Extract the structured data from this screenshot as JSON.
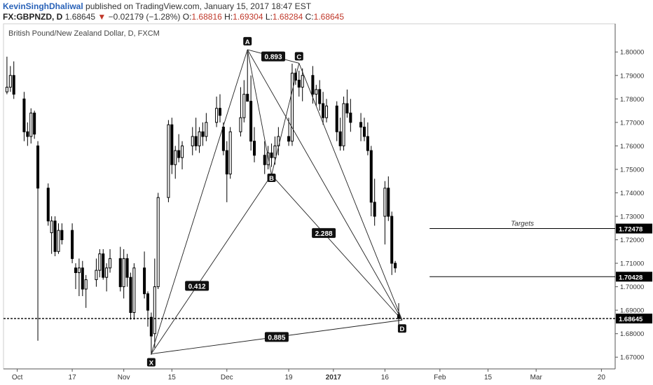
{
  "header": {
    "author": "KevinSinghDhaliwal",
    "published_text": "published on TradingView.com, January 15, 2017 18:47 EST",
    "symbol": "FX:GBPNZD, D",
    "last": "1.68645",
    "change_icon": "down-triangle-icon",
    "change": "−0.02179 (−1.28%)",
    "o_label": "O:",
    "o": "1.68816",
    "h_label": "H:",
    "h": "1.69304",
    "l_label": "L:",
    "l": "1.68284",
    "c_label": "C:",
    "c": "1.68645"
  },
  "colors": {
    "bull": "#ffffff",
    "bear": "#000000",
    "accent_red": "#c0392b",
    "link_blue": "#2962b8"
  },
  "chart_data": {
    "type": "candlestick",
    "title": "British Pound/New Zealand Dollar, D, FXCM",
    "y_ticks": [
      1.67,
      1.68,
      1.69,
      1.7,
      1.71,
      1.72,
      1.73,
      1.74,
      1.75,
      1.76,
      1.77,
      1.78,
      1.79,
      1.8
    ],
    "y_tick_labels": [
      "1.67000",
      "1.68000",
      "1.69000",
      "1.70000",
      "1.71000",
      "1.72000",
      "1.73000",
      "1.74000",
      "1.75000",
      "1.76000",
      "1.77000",
      "1.78000",
      "1.79000",
      "1.80000"
    ],
    "ylim": [
      1.665,
      1.812
    ],
    "x_ticks": [
      {
        "label": "Oct",
        "date": "2016-10-01"
      },
      {
        "label": "17",
        "date": "2016-10-17"
      },
      {
        "label": "Nov",
        "date": "2016-11-01"
      },
      {
        "label": "15",
        "date": "2016-11-15"
      },
      {
        "label": "Dec",
        "date": "2016-12-01"
      },
      {
        "label": "19",
        "date": "2016-12-19"
      },
      {
        "label": "2017",
        "date": "2017-01-01"
      },
      {
        "label": "16",
        "date": "2017-01-16"
      },
      {
        "label": "Feb",
        "date": "2017-02-01"
      },
      {
        "label": "15",
        "date": "2017-02-15"
      },
      {
        "label": "Mar",
        "date": "2017-03-01"
      },
      {
        "label": "20",
        "date": "2017-03-20"
      }
    ],
    "xlim": [
      "2016-09-27",
      "2017-03-24"
    ],
    "grid": false,
    "candles": [
      {
        "date": "2016-09-28",
        "o": 1.783,
        "h": 1.798,
        "l": 1.782,
        "c": 1.785
      },
      {
        "date": "2016-09-29",
        "o": 1.785,
        "h": 1.794,
        "l": 1.783,
        "c": 1.79
      },
      {
        "date": "2016-09-30",
        "o": 1.79,
        "h": 1.796,
        "l": 1.78,
        "c": 1.782
      },
      {
        "date": "2016-10-03",
        "o": 1.78,
        "h": 1.783,
        "l": 1.762,
        "c": 1.766
      },
      {
        "date": "2016-10-04",
        "o": 1.766,
        "h": 1.77,
        "l": 1.76,
        "c": 1.764
      },
      {
        "date": "2016-10-05",
        "o": 1.764,
        "h": 1.776,
        "l": 1.761,
        "c": 1.774
      },
      {
        "date": "2016-10-06",
        "o": 1.774,
        "h": 1.775,
        "l": 1.763,
        "c": 1.765
      },
      {
        "date": "2016-10-07",
        "o": 1.76,
        "h": 1.762,
        "l": 1.677,
        "c": 1.742
      },
      {
        "date": "2016-10-10",
        "o": 1.742,
        "h": 1.744,
        "l": 1.726,
        "c": 1.728
      },
      {
        "date": "2016-10-11",
        "o": 1.723,
        "h": 1.73,
        "l": 1.714,
        "c": 1.728
      },
      {
        "date": "2016-10-12",
        "o": 1.728,
        "h": 1.73,
        "l": 1.713,
        "c": 1.715
      },
      {
        "date": "2016-10-13",
        "o": 1.715,
        "h": 1.727,
        "l": 1.714,
        "c": 1.724
      },
      {
        "date": "2016-10-14",
        "o": 1.724,
        "h": 1.727,
        "l": 1.718,
        "c": 1.72
      },
      {
        "date": "2016-10-17",
        "o": 1.724,
        "h": 1.727,
        "l": 1.71,
        "c": 1.712
      },
      {
        "date": "2016-10-18",
        "o": 1.708,
        "h": 1.71,
        "l": 1.699,
        "c": 1.706
      },
      {
        "date": "2016-10-19",
        "o": 1.706,
        "h": 1.712,
        "l": 1.696,
        "c": 1.708
      },
      {
        "date": "2016-10-20",
        "o": 1.708,
        "h": 1.711,
        "l": 1.696,
        "c": 1.699
      },
      {
        "date": "2016-10-21",
        "o": 1.699,
        "h": 1.705,
        "l": 1.691,
        "c": 1.703
      },
      {
        "date": "2016-10-24",
        "o": 1.703,
        "h": 1.712,
        "l": 1.7,
        "c": 1.707
      },
      {
        "date": "2016-10-25",
        "o": 1.707,
        "h": 1.716,
        "l": 1.704,
        "c": 1.714
      },
      {
        "date": "2016-10-26",
        "o": 1.714,
        "h": 1.716,
        "l": 1.703,
        "c": 1.704
      },
      {
        "date": "2016-10-27",
        "o": 1.704,
        "h": 1.71,
        "l": 1.698,
        "c": 1.708
      },
      {
        "date": "2016-10-28",
        "o": 1.708,
        "h": 1.716,
        "l": 1.706,
        "c": 1.712
      },
      {
        "date": "2016-10-31",
        "o": 1.712,
        "h": 1.717,
        "l": 1.698,
        "c": 1.7
      },
      {
        "date": "2016-11-01",
        "o": 1.7,
        "h": 1.716,
        "l": 1.695,
        "c": 1.712
      },
      {
        "date": "2016-11-02",
        "o": 1.712,
        "h": 1.714,
        "l": 1.7,
        "c": 1.704
      },
      {
        "date": "2016-11-03",
        "o": 1.704,
        "h": 1.706,
        "l": 1.686,
        "c": 1.689
      },
      {
        "date": "2016-11-04",
        "o": 1.689,
        "h": 1.71,
        "l": 1.686,
        "c": 1.708
      },
      {
        "date": "2016-11-07",
        "o": 1.708,
        "h": 1.715,
        "l": 1.695,
        "c": 1.697
      },
      {
        "date": "2016-11-08",
        "o": 1.697,
        "h": 1.698,
        "l": 1.683,
        "c": 1.69
      },
      {
        "date": "2016-11-09",
        "o": 1.687,
        "h": 1.689,
        "l": 1.671,
        "c": 1.679
      },
      {
        "date": "2016-11-10",
        "o": 1.68,
        "h": 1.712,
        "l": 1.674,
        "c": 1.7
      },
      {
        "date": "2016-11-11",
        "o": 1.7,
        "h": 1.74,
        "l": 1.699,
        "c": 1.738
      },
      {
        "date": "2016-11-14",
        "o": 1.738,
        "h": 1.771,
        "l": 1.736,
        "c": 1.769
      },
      {
        "date": "2016-11-15",
        "o": 1.769,
        "h": 1.772,
        "l": 1.748,
        "c": 1.752
      },
      {
        "date": "2016-11-16",
        "o": 1.752,
        "h": 1.76,
        "l": 1.746,
        "c": 1.758
      },
      {
        "date": "2016-11-17",
        "o": 1.758,
        "h": 1.765,
        "l": 1.753,
        "c": 1.755
      },
      {
        "date": "2016-11-18",
        "o": 1.755,
        "h": 1.762,
        "l": 1.75,
        "c": 1.76
      },
      {
        "date": "2016-11-21",
        "o": 1.76,
        "h": 1.768,
        "l": 1.756,
        "c": 1.764
      },
      {
        "date": "2016-11-22",
        "o": 1.764,
        "h": 1.772,
        "l": 1.758,
        "c": 1.76
      },
      {
        "date": "2016-11-23",
        "o": 1.76,
        "h": 1.768,
        "l": 1.757,
        "c": 1.766
      },
      {
        "date": "2016-11-24",
        "o": 1.766,
        "h": 1.77,
        "l": 1.76,
        "c": 1.764
      },
      {
        "date": "2016-11-25",
        "o": 1.764,
        "h": 1.774,
        "l": 1.762,
        "c": 1.77
      },
      {
        "date": "2016-11-28",
        "o": 1.77,
        "h": 1.781,
        "l": 1.768,
        "c": 1.776
      },
      {
        "date": "2016-11-29",
        "o": 1.776,
        "h": 1.782,
        "l": 1.77,
        "c": 1.773
      },
      {
        "date": "2016-11-30",
        "o": 1.768,
        "h": 1.77,
        "l": 1.756,
        "c": 1.758
      },
      {
        "date": "2016-12-01",
        "o": 1.758,
        "h": 1.762,
        "l": 1.736,
        "c": 1.748
      },
      {
        "date": "2016-12-02",
        "o": 1.748,
        "h": 1.768,
        "l": 1.746,
        "c": 1.766
      },
      {
        "date": "2016-12-05",
        "o": 1.766,
        "h": 1.785,
        "l": 1.764,
        "c": 1.772
      },
      {
        "date": "2016-12-06",
        "o": 1.772,
        "h": 1.788,
        "l": 1.77,
        "c": 1.782
      },
      {
        "date": "2016-12-07",
        "o": 1.782,
        "h": 1.8,
        "l": 1.779,
        "c": 1.779
      },
      {
        "date": "2016-12-08",
        "o": 1.779,
        "h": 1.79,
        "l": 1.758,
        "c": 1.762
      },
      {
        "date": "2016-12-09",
        "o": 1.762,
        "h": 1.768,
        "l": 1.753,
        "c": 1.756
      },
      {
        "date": "2016-12-12",
        "o": 1.756,
        "h": 1.762,
        "l": 1.748,
        "c": 1.752
      },
      {
        "date": "2016-12-13",
        "o": 1.752,
        "h": 1.76,
        "l": 1.75,
        "c": 1.757
      },
      {
        "date": "2016-12-14",
        "o": 1.757,
        "h": 1.761,
        "l": 1.751,
        "c": 1.755
      },
      {
        "date": "2016-12-15",
        "o": 1.755,
        "h": 1.764,
        "l": 1.752,
        "c": 1.76
      },
      {
        "date": "2016-12-16",
        "o": 1.76,
        "h": 1.768,
        "l": 1.756,
        "c": 1.764
      },
      {
        "date": "2016-12-19",
        "o": 1.764,
        "h": 1.772,
        "l": 1.76,
        "c": 1.762
      },
      {
        "date": "2016-12-20",
        "o": 1.762,
        "h": 1.795,
        "l": 1.76,
        "c": 1.791
      },
      {
        "date": "2016-12-21",
        "o": 1.791,
        "h": 1.793,
        "l": 1.786,
        "c": 1.788
      },
      {
        "date": "2016-12-22",
        "o": 1.788,
        "h": 1.792,
        "l": 1.781,
        "c": 1.785
      },
      {
        "date": "2016-12-23",
        "o": 1.785,
        "h": 1.793,
        "l": 1.779,
        "c": 1.79
      },
      {
        "date": "2016-12-26",
        "o": 1.79,
        "h": 1.794,
        "l": 1.778,
        "c": 1.782
      },
      {
        "date": "2016-12-27",
        "o": 1.782,
        "h": 1.786,
        "l": 1.777,
        "c": 1.784
      },
      {
        "date": "2016-12-28",
        "o": 1.784,
        "h": 1.788,
        "l": 1.775,
        "c": 1.778
      },
      {
        "date": "2016-12-29",
        "o": 1.778,
        "h": 1.783,
        "l": 1.769,
        "c": 1.772
      },
      {
        "date": "2016-12-30",
        "o": 1.772,
        "h": 1.78,
        "l": 1.77,
        "c": 1.777
      },
      {
        "date": "2017-01-02",
        "o": 1.777,
        "h": 1.779,
        "l": 1.762,
        "c": 1.766
      },
      {
        "date": "2017-01-03",
        "o": 1.766,
        "h": 1.772,
        "l": 1.758,
        "c": 1.76
      },
      {
        "date": "2017-01-04",
        "o": 1.76,
        "h": 1.781,
        "l": 1.758,
        "c": 1.778
      },
      {
        "date": "2017-01-05",
        "o": 1.778,
        "h": 1.784,
        "l": 1.772,
        "c": 1.774
      },
      {
        "date": "2017-01-06",
        "o": 1.774,
        "h": 1.78,
        "l": 1.766,
        "c": 1.77
      },
      {
        "date": "2017-01-09",
        "o": 1.77,
        "h": 1.774,
        "l": 1.762,
        "c": 1.768
      },
      {
        "date": "2017-01-10",
        "o": 1.768,
        "h": 1.772,
        "l": 1.762,
        "c": 1.764
      },
      {
        "date": "2017-01-11",
        "o": 1.764,
        "h": 1.77,
        "l": 1.756,
        "c": 1.758
      },
      {
        "date": "2017-01-12",
        "o": 1.758,
        "h": 1.76,
        "l": 1.73,
        "c": 1.736
      },
      {
        "date": "2017-01-13",
        "o": 1.736,
        "h": 1.746,
        "l": 1.726,
        "c": 1.73
      },
      {
        "date": "2017-01-16",
        "o": 1.73,
        "h": 1.745,
        "l": 1.718,
        "c": 1.742
      },
      {
        "date": "2017-01-17",
        "o": 1.742,
        "h": 1.747,
        "l": 1.728,
        "c": 1.73
      },
      {
        "date": "2017-01-18",
        "o": 1.73,
        "h": 1.732,
        "l": 1.705,
        "c": 1.71
      },
      {
        "date": "2017-01-19",
        "o": 1.71,
        "h": 1.711,
        "l": 1.706,
        "c": 1.708
      },
      {
        "date": "2017-01-20",
        "o": 1.6882,
        "h": 1.693,
        "l": 1.6828,
        "c": 1.6865
      }
    ],
    "pattern": {
      "points": [
        {
          "name": "X",
          "date": "2016-11-09",
          "price": 1.6714
        },
        {
          "name": "A",
          "date": "2016-12-07",
          "price": 1.801
        },
        {
          "name": "B",
          "date": "2016-12-14",
          "price": 1.7476
        },
        {
          "name": "C",
          "date": "2016-12-22",
          "price": 1.7952
        },
        {
          "name": "D",
          "date": "2017-01-21",
          "price": 1.6858
        }
      ],
      "ratios": [
        {
          "text": "0.893",
          "between": [
            "A",
            "C"
          ],
          "t": 0.5
        },
        {
          "text": "0.412",
          "between": [
            "X",
            "B"
          ],
          "t": 0.38
        },
        {
          "text": "2.288",
          "between": [
            "B",
            "D"
          ],
          "t": 0.4
        },
        {
          "text": "0.885",
          "between": [
            "X",
            "D"
          ],
          "t": 0.5
        }
      ]
    },
    "targets_label": "Targets",
    "target_lines": [
      {
        "price": 1.72478,
        "label": "1.72478",
        "from": "2017-01-29"
      },
      {
        "price": 1.70428,
        "label": "1.70428",
        "from": "2017-01-29"
      }
    ],
    "last_price": {
      "price": 1.68645,
      "label": "1.68645"
    }
  }
}
